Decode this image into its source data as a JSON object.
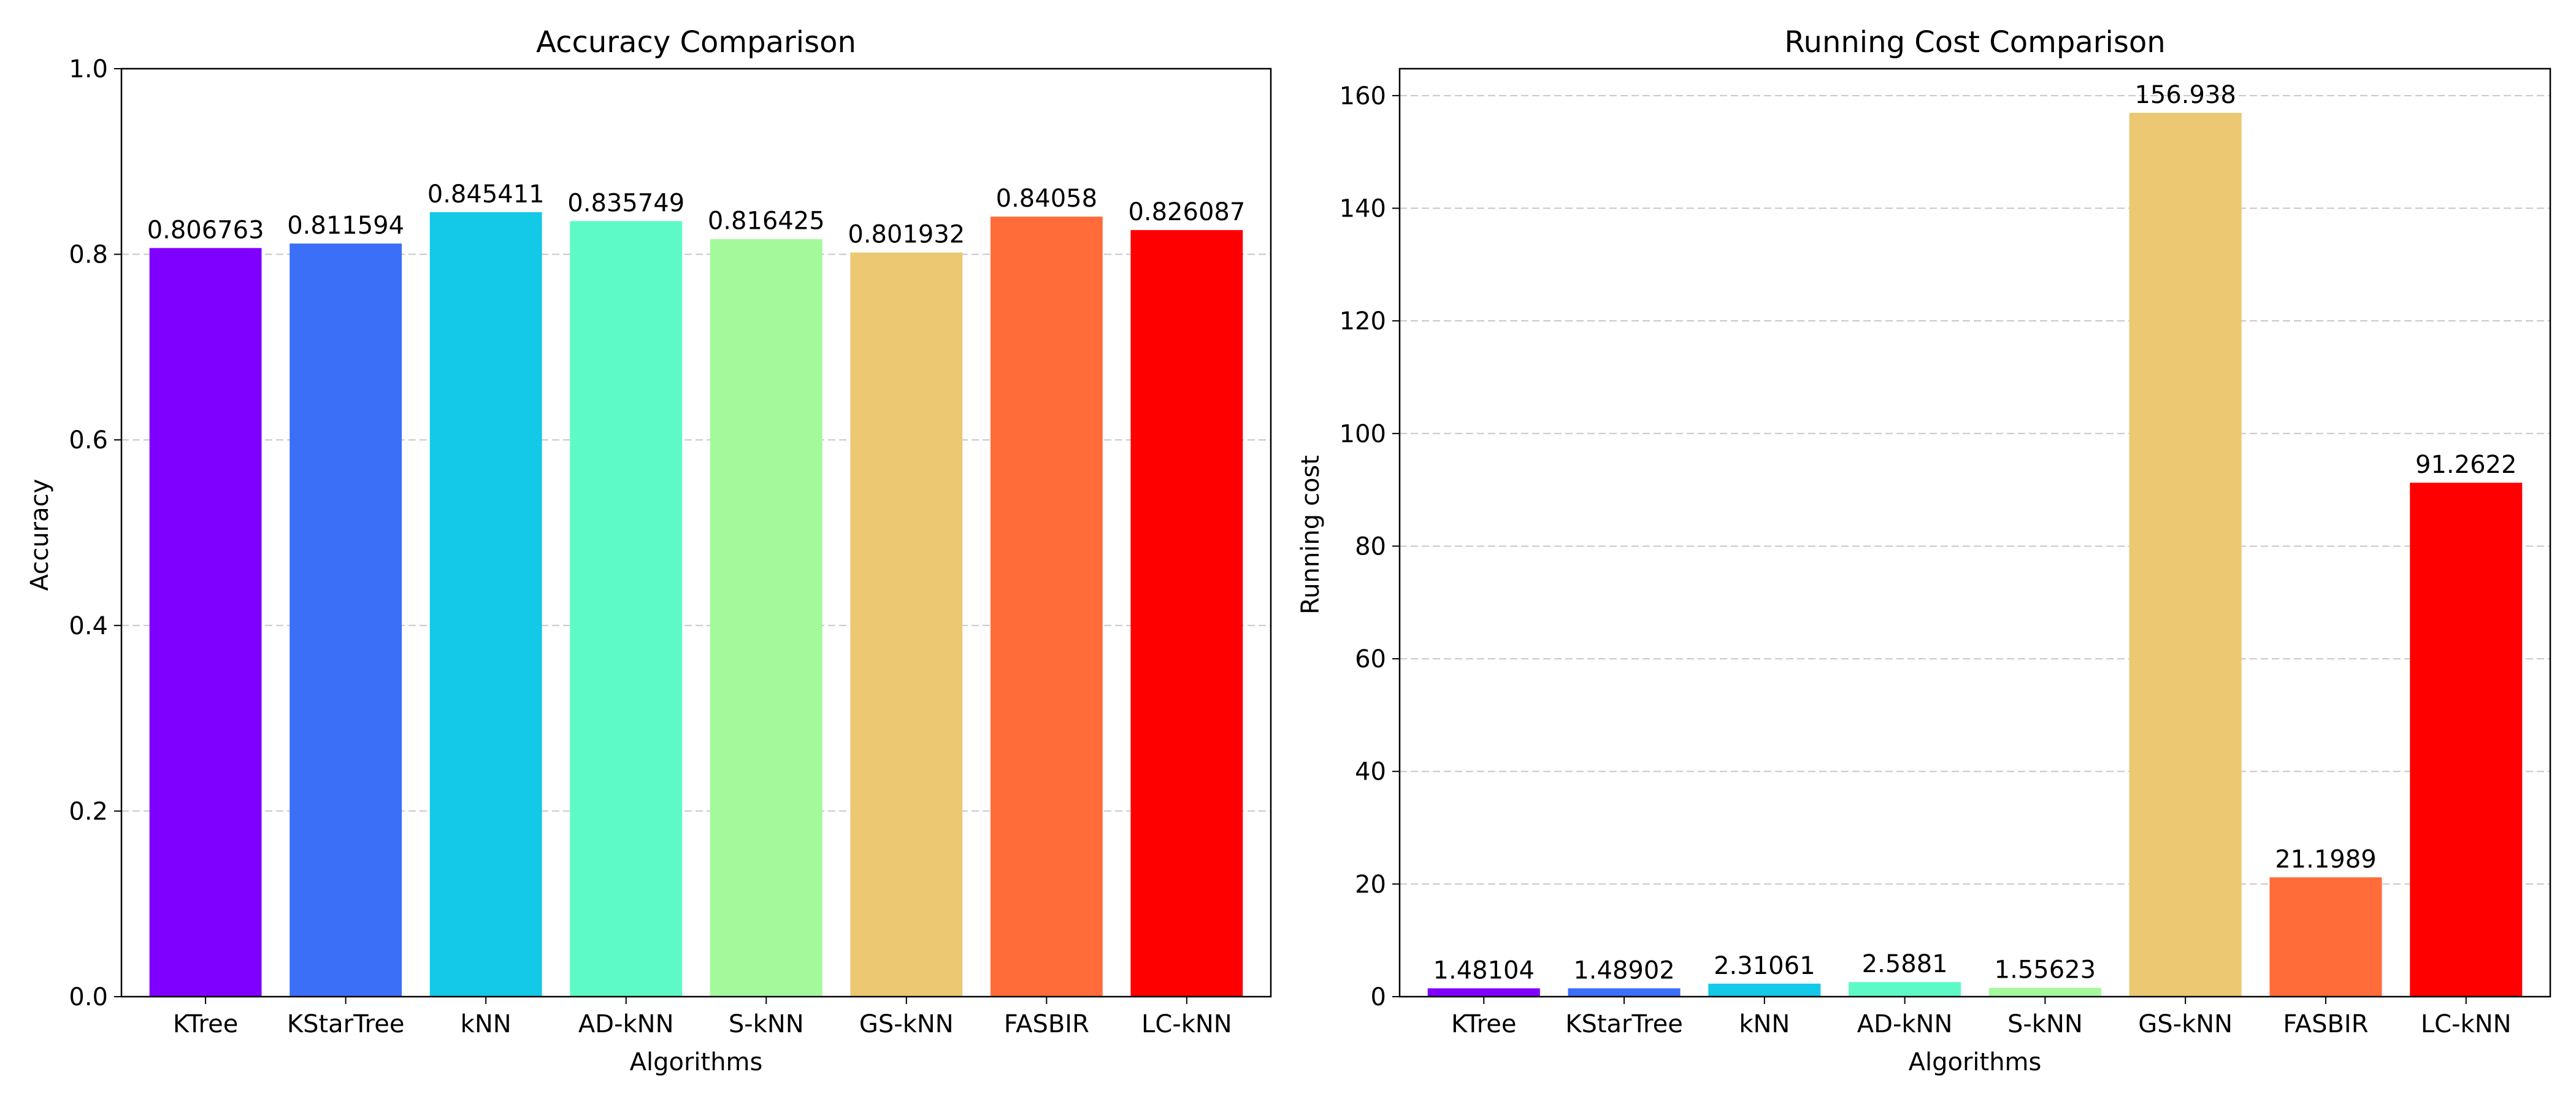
{
  "figure": {
    "background": "#ffffff"
  },
  "chart_data": [
    {
      "type": "bar",
      "title": "Accuracy Comparison",
      "xlabel": "Algorithms",
      "ylabel": "Accuracy",
      "categories": [
        "KTree",
        "KStarTree",
        "kNN",
        "AD-kNN",
        "S-kNN",
        "GS-kNN",
        "FASBIR",
        "LC-kNN"
      ],
      "values": [
        0.806763,
        0.811594,
        0.845411,
        0.835749,
        0.816425,
        0.801932,
        0.84058,
        0.826087
      ],
      "value_labels": [
        "0.806763",
        "0.811594",
        "0.845411",
        "0.835749",
        "0.816425",
        "0.801932",
        "0.84058",
        "0.826087"
      ],
      "colors": [
        "#8000ff",
        "#3c6ff8",
        "#14c8e7",
        "#5dfac8",
        "#a4f99b",
        "#ecc872",
        "#ff6c3a",
        "#ff0000"
      ],
      "ylim": [
        0,
        1.0
      ],
      "yticks": [
        0.0,
        0.2,
        0.4,
        0.6,
        0.8,
        1.0
      ],
      "ytick_labels": [
        "0.0",
        "0.2",
        "0.4",
        "0.6",
        "0.8",
        "1.0"
      ],
      "grid": "y-dashed",
      "legend": "none"
    },
    {
      "type": "bar",
      "title": "Running Cost Comparison",
      "xlabel": "Algorithms",
      "ylabel": "Running cost",
      "categories": [
        "KTree",
        "KStarTree",
        "kNN",
        "AD-kNN",
        "S-kNN",
        "GS-kNN",
        "FASBIR",
        "LC-kNN"
      ],
      "values": [
        1.48104,
        1.48902,
        2.31061,
        2.5881,
        1.55623,
        156.938,
        21.1989,
        91.2622
      ],
      "value_labels": [
        "1.48104",
        "1.48902",
        "2.31061",
        "2.5881",
        "1.55623",
        "156.938",
        "21.1989",
        "91.2622"
      ],
      "colors": [
        "#8000ff",
        "#3c6ff8",
        "#14c8e7",
        "#5dfac8",
        "#a4f99b",
        "#ecc872",
        "#ff6c3a",
        "#ff0000"
      ],
      "ylim": [
        0,
        164.78
      ],
      "yticks": [
        0,
        20,
        40,
        60,
        80,
        100,
        120,
        140,
        160
      ],
      "ytick_labels": [
        "0",
        "20",
        "40",
        "60",
        "80",
        "100",
        "120",
        "140",
        "160"
      ],
      "grid": "y-dashed",
      "legend": "none"
    }
  ]
}
